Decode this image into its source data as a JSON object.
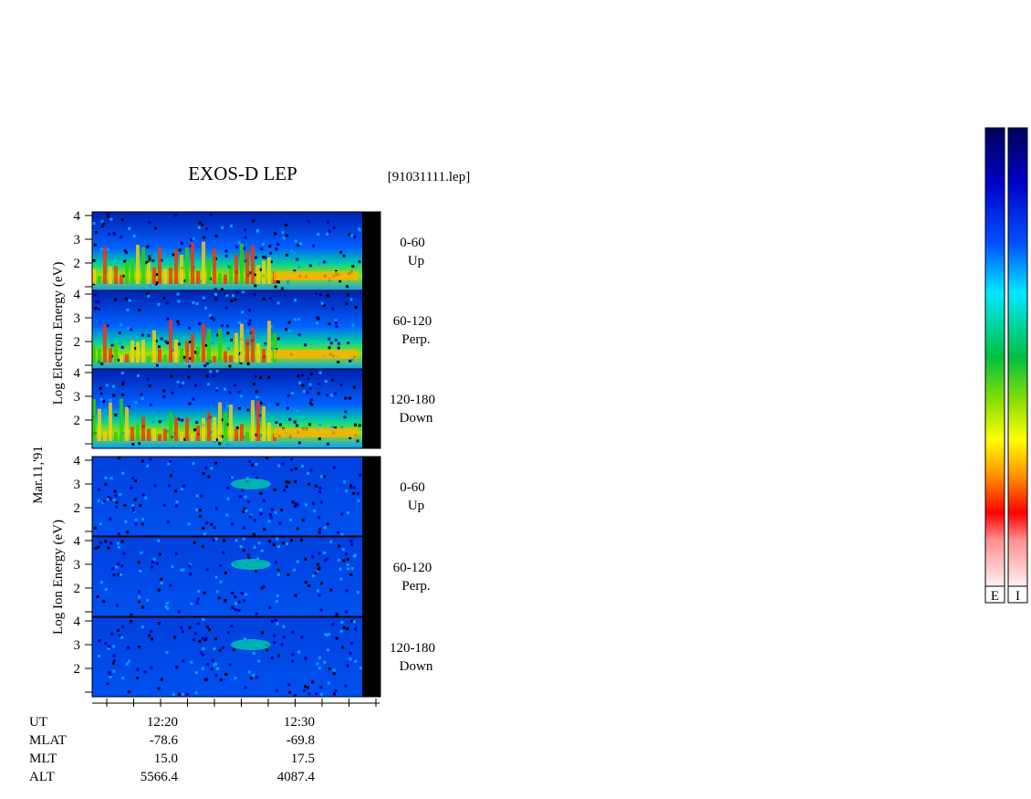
{
  "title": "EXOS-D LEP",
  "file": "[91031111.lep]",
  "left_labels": {
    "electron": "Log  Electron  Energy  (eV)",
    "date": "Mar.11,'91",
    "ion": "Log  Ion  Energy  (eV)"
  },
  "panels": [
    {
      "species": "electron",
      "angle": "0-60",
      "direction": "Up",
      "yticks": [
        4,
        3,
        2
      ]
    },
    {
      "species": "electron",
      "angle": "60-120",
      "direction": "Perp.",
      "yticks": [
        4,
        3,
        2
      ]
    },
    {
      "species": "electron",
      "angle": "120-180",
      "direction": "Down",
      "yticks": [
        4,
        3,
        2
      ]
    },
    {
      "species": "ion",
      "angle": "0-60",
      "direction": "Up",
      "yticks": [
        4,
        3,
        2
      ]
    },
    {
      "species": "ion",
      "angle": "60-120",
      "direction": "Perp.",
      "yticks": [
        4,
        3,
        2
      ]
    },
    {
      "species": "ion",
      "angle": "120-180",
      "direction": "Down",
      "yticks": [
        4,
        3,
        2
      ]
    }
  ],
  "time_axis": {
    "rows": [
      {
        "label": "UT",
        "values": [
          "12:20",
          "12:30"
        ]
      },
      {
        "label": "MLAT",
        "values": [
          "-78.6",
          "-69.8"
        ]
      },
      {
        "label": "MLT",
        "values": [
          "15.0",
          "17.5"
        ]
      },
      {
        "label": "ALT",
        "values": [
          "5566.4",
          "4087.4"
        ]
      }
    ]
  },
  "colorbars": [
    "E",
    "I"
  ]
}
